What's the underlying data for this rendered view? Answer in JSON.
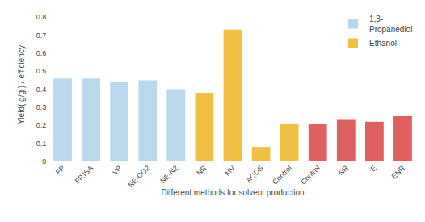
{
  "chart_data": {
    "type": "bar",
    "xlabel": "Different methods for solvent production",
    "ylabel": "Yield( g/g ) / efficiency",
    "categories": [
      "FP",
      "FP.ISA",
      "VP",
      "NE-CO2",
      "NE-N2",
      "NR",
      "MV",
      "AQDS",
      "Control",
      "Control",
      "NR",
      "E",
      "ENR"
    ],
    "series": [
      {
        "name": "1,3-\nPropanediol",
        "color": "#b8d8ee",
        "values": [
          0.46,
          0.46,
          0.44,
          0.45,
          0.4,
          null,
          null,
          null,
          null,
          null,
          null,
          null,
          null
        ]
      },
      {
        "name": "Ethanol",
        "color": "#f0c040",
        "values": [
          null,
          null,
          null,
          null,
          null,
          0.38,
          0.73,
          0.08,
          0.21,
          null,
          null,
          null,
          null
        ]
      },
      {
        "color": "#e06060",
        "values": [
          null,
          null,
          null,
          null,
          null,
          null,
          null,
          null,
          null,
          0.21,
          0.23,
          0.22,
          0.25
        ]
      }
    ],
    "ylim": [
      0,
      0.85
    ],
    "yticks": [
      0,
      0.1,
      0.2,
      0.3,
      0.4,
      0.5,
      0.6,
      0.7,
      0.8
    ],
    "grid": false,
    "legend": "upper right"
  }
}
